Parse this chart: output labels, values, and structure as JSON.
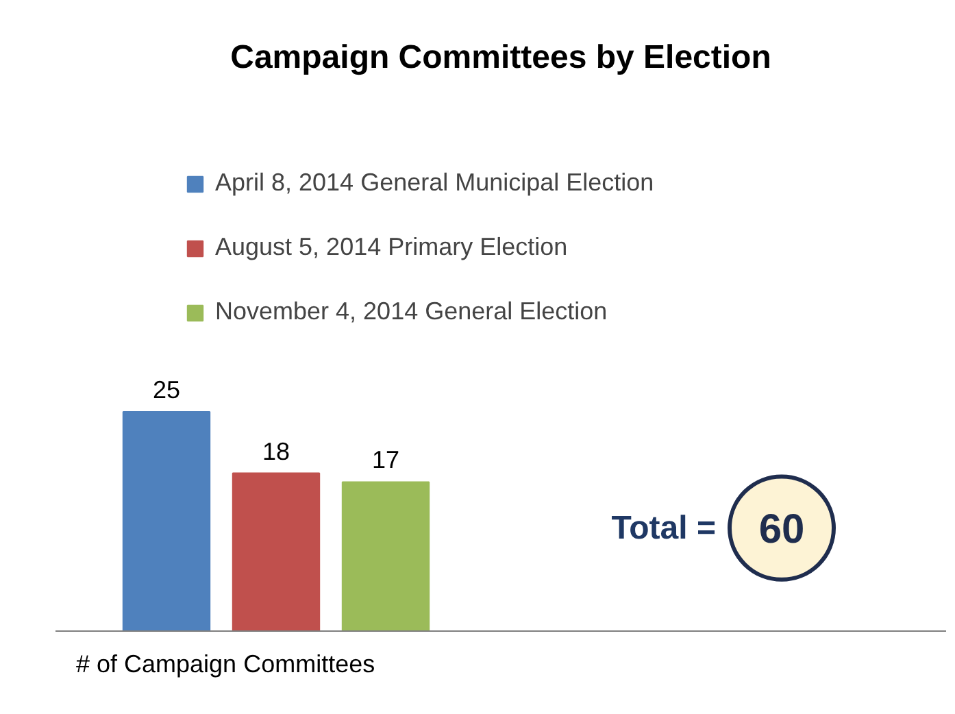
{
  "chart_data": {
    "type": "bar",
    "title": "Campaign Committees by Election",
    "categories": [
      null
    ],
    "xlabel": "# of Campaign Committees",
    "series": [
      {
        "name": "April 8, 2014 General Municipal Election",
        "color": "#4f81bd",
        "values": [
          25
        ]
      },
      {
        "name": "August 5, 2014 Primary Election",
        "color": "#c0504d",
        "values": [
          18
        ]
      },
      {
        "name": "November 4, 2014 General Election",
        "color": "#9bbb59",
        "values": [
          17
        ]
      }
    ],
    "data_labels": true,
    "grid": false,
    "legend": "top",
    "annotations": [
      "Total = 60"
    ]
  }
}
